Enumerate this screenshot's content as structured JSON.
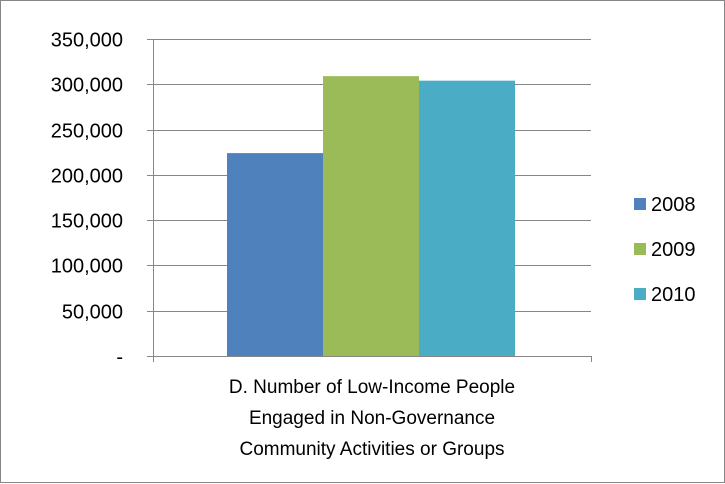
{
  "chart_data": {
    "type": "bar",
    "categories": [
      "D. Number of Low-Income People Engaged in Non-Governance Community Activities or Groups"
    ],
    "category_label_lines": [
      "D. Number of Low-Income People",
      "Engaged in Non-Governance",
      "Community Activities or Groups"
    ],
    "series": [
      {
        "name": "2008",
        "values": [
          224000
        ],
        "color": "#4f81bd"
      },
      {
        "name": "2009",
        "values": [
          309000
        ],
        "color": "#9bbb59"
      },
      {
        "name": "2010",
        "values": [
          304000
        ],
        "color": "#4bacc6"
      }
    ],
    "ylim": [
      0,
      350000
    ],
    "y_ticks": [
      0,
      50000,
      100000,
      150000,
      200000,
      250000,
      300000,
      350000
    ],
    "y_tick_labels": [
      "-",
      "50,000",
      "100,000",
      "150,000",
      "200,000",
      "250,000",
      "300,000",
      "350,000"
    ],
    "grid": true,
    "legend_position": "right",
    "colors": {
      "gridline": "#868686",
      "axis": "#868686",
      "border": "#868686"
    }
  }
}
